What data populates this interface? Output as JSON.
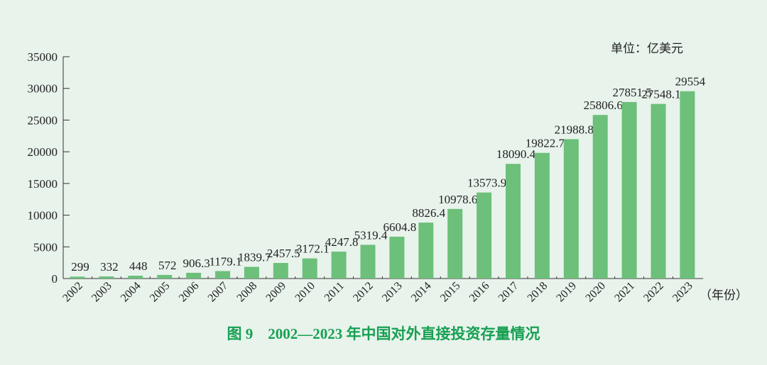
{
  "chart_data": {
    "type": "bar",
    "title": "图 9　2002—2023 年中国对外直接投资存量情况",
    "unit_label": "单位：亿美元",
    "xlabel": "（年份）",
    "ylabel": "",
    "ylim": [
      0,
      35000
    ],
    "yticks": [
      0,
      5000,
      10000,
      15000,
      20000,
      25000,
      30000,
      35000
    ],
    "categories": [
      "2002",
      "2003",
      "2004",
      "2005",
      "2006",
      "2007",
      "2008",
      "2009",
      "2010",
      "2011",
      "2012",
      "2013",
      "2014",
      "2015",
      "2016",
      "2017",
      "2018",
      "2019",
      "2020",
      "2021",
      "2022",
      "2023"
    ],
    "values": [
      299,
      332,
      448,
      572,
      906.3,
      1179.1,
      1839.7,
      2457.5,
      3172.1,
      4247.8,
      5319.4,
      6604.8,
      8826.4,
      10978.6,
      13573.9,
      18090.4,
      19822.7,
      21988.8,
      25806.6,
      27851.5,
      27548.1,
      29554
    ],
    "labels": [
      "299",
      "332",
      "448",
      "572",
      "906.3",
      "1179.1",
      "1839.7",
      "2457.5",
      "3172.1",
      "4247.8",
      "5319.4",
      "6604.8",
      "8826.4",
      "10978.6",
      "13573.9",
      "18090.4",
      "19822.7",
      "21988.8",
      "25806.6",
      "27851.5",
      "27548.1",
      "29554"
    ],
    "grid": false,
    "bar_color": "#6cc07a",
    "title_color": "#17a052"
  }
}
